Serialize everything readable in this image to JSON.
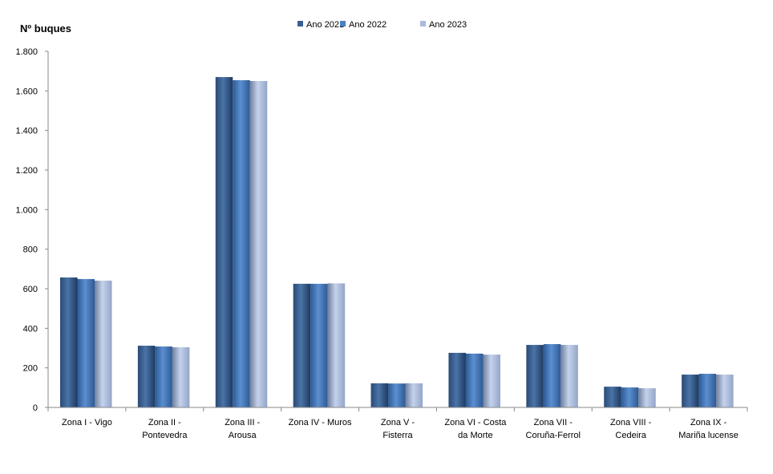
{
  "chart_data": {
    "type": "bar",
    "title": "",
    "ylabel": "Nº  buques",
    "xlabel": "",
    "ylim": [
      0,
      1800
    ],
    "yticks": [
      0,
      200,
      400,
      600,
      800,
      1000,
      1200,
      1400,
      1600,
      1800
    ],
    "ytick_labels": [
      "0",
      "200",
      "400",
      "600",
      "800",
      "1.000",
      "1.200",
      "1.400",
      "1.600",
      "1.800"
    ],
    "legend_position": "top-center",
    "categories": [
      [
        "Zona I - Vigo"
      ],
      [
        "Zona II -",
        "Pontevedra"
      ],
      [
        "Zona III -",
        "Arousa"
      ],
      [
        "Zona IV - Muros"
      ],
      [
        "Zona V -",
        "Fisterra"
      ],
      [
        "Zona VI - Costa",
        "da Morte"
      ],
      [
        "Zona VII -",
        "Coruña-Ferrol"
      ],
      [
        "Zona VIII -",
        "Cedeira"
      ],
      [
        "Zona IX -",
        "Mariña lucense"
      ]
    ],
    "series": [
      {
        "name": "Ano 2021",
        "color": "#3a5f91",
        "values": [
          657,
          312,
          1670,
          625,
          122,
          276,
          316,
          105,
          166
        ]
      },
      {
        "name": "Ano 2022",
        "color": "#4a7fc1",
        "values": [
          649,
          308,
          1654,
          625,
          121,
          272,
          320,
          101,
          170
        ]
      },
      {
        "name": "Ano 2023",
        "color": "#a9bbdc",
        "values": [
          641,
          304,
          1650,
          627,
          122,
          267,
          316,
          97,
          166
        ]
      }
    ]
  }
}
